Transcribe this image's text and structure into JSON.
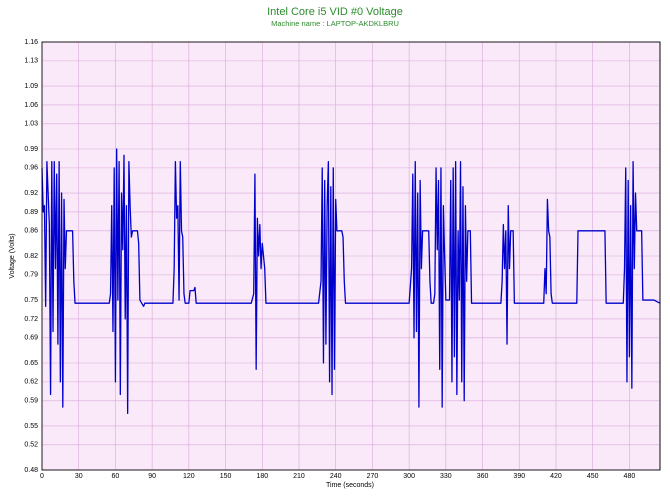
{
  "chart_data": {
    "type": "line",
    "title": "Intel Core i5 VID #0 Voltage",
    "subtitle": "Machine name : LAPTOP-AKDKLBRU",
    "x_label": "Time (seconds)",
    "y_label": "Voltage (Volts)",
    "xlim": [
      0,
      505
    ],
    "ylim": [
      0.48,
      1.16
    ],
    "xticks": [
      0,
      30,
      60,
      90,
      120,
      150,
      180,
      210,
      240,
      270,
      300,
      330,
      360,
      390,
      420,
      450,
      480
    ],
    "yticks": [
      0.48,
      0.52,
      0.55,
      0.59,
      0.62,
      0.65,
      0.69,
      0.72,
      0.75,
      0.79,
      0.82,
      0.86,
      0.89,
      0.92,
      0.96,
      0.99,
      1.03,
      1.06,
      1.09,
      1.13,
      1.16
    ],
    "grid": true,
    "x": [
      0,
      1,
      2,
      3,
      4,
      6,
      7,
      8,
      9,
      10,
      11,
      12,
      13,
      14,
      15,
      16,
      17,
      18,
      19,
      20,
      25,
      26,
      27,
      55,
      56,
      57,
      58,
      59,
      60,
      61,
      62,
      63,
      64,
      65,
      66,
      67,
      68,
      69,
      70,
      71,
      72,
      73,
      74,
      78,
      79,
      80,
      83,
      84,
      107,
      108,
      109,
      110,
      111,
      112,
      113,
      114,
      115,
      116,
      117,
      120,
      121,
      124,
      125,
      126,
      171,
      173,
      174,
      175,
      176,
      177,
      178,
      179,
      180,
      182,
      183,
      226,
      228,
      229,
      230,
      231,
      232,
      233,
      234,
      235,
      236,
      237,
      238,
      239,
      240,
      241,
      245,
      246,
      247,
      248,
      300,
      302,
      303,
      304,
      305,
      306,
      307,
      308,
      309,
      310,
      311,
      316,
      317,
      318,
      320,
      321,
      322,
      323,
      324,
      325,
      326,
      327,
      328,
      329,
      330,
      333,
      334,
      335,
      336,
      337,
      338,
      339,
      340,
      341,
      342,
      343,
      344,
      345,
      346,
      347,
      348,
      350,
      351,
      375,
      376,
      377,
      378,
      379,
      380,
      381,
      382,
      383,
      385,
      386,
      410,
      411,
      412,
      413,
      414,
      415,
      416,
      417,
      437,
      438,
      460,
      461,
      475,
      476,
      477,
      478,
      479,
      480,
      481,
      482,
      483,
      484,
      485,
      486,
      490,
      491,
      500,
      505
    ],
    "series": [
      {
        "color": "#0000cc",
        "values": [
          0.96,
          0.89,
          0.9,
          0.74,
          0.97,
          0.87,
          0.6,
          0.97,
          0.7,
          0.97,
          0.8,
          0.95,
          0.68,
          0.97,
          0.62,
          0.92,
          0.58,
          0.91,
          0.8,
          0.86,
          0.86,
          0.78,
          0.745,
          0.745,
          0.76,
          0.9,
          0.7,
          0.96,
          0.62,
          0.99,
          0.75,
          0.97,
          0.6,
          0.92,
          0.83,
          0.98,
          0.72,
          0.9,
          0.57,
          0.97,
          0.9,
          0.85,
          0.86,
          0.86,
          0.84,
          0.75,
          0.74,
          0.745,
          0.745,
          0.8,
          0.97,
          0.88,
          0.9,
          0.75,
          0.97,
          0.86,
          0.85,
          0.76,
          0.745,
          0.745,
          0.765,
          0.765,
          0.77,
          0.745,
          0.745,
          0.76,
          0.95,
          0.64,
          0.88,
          0.82,
          0.87,
          0.8,
          0.84,
          0.8,
          0.745,
          0.745,
          0.78,
          0.96,
          0.65,
          0.94,
          0.68,
          0.9,
          0.97,
          0.62,
          0.93,
          0.6,
          0.96,
          0.64,
          0.91,
          0.86,
          0.86,
          0.85,
          0.78,
          0.745,
          0.745,
          0.8,
          0.95,
          0.69,
          0.97,
          0.7,
          0.92,
          0.58,
          0.94,
          0.8,
          0.86,
          0.86,
          0.78,
          0.745,
          0.745,
          0.76,
          0.96,
          0.83,
          0.94,
          0.64,
          0.96,
          0.58,
          0.9,
          0.82,
          0.75,
          0.75,
          0.94,
          0.62,
          0.96,
          0.66,
          0.97,
          0.6,
          0.86,
          0.75,
          0.97,
          0.62,
          0.93,
          0.59,
          0.9,
          0.78,
          0.86,
          0.86,
          0.745,
          0.745,
          0.78,
          0.87,
          0.8,
          0.86,
          0.68,
          0.9,
          0.8,
          0.86,
          0.86,
          0.745,
          0.745,
          0.8,
          0.76,
          0.91,
          0.86,
          0.85,
          0.76,
          0.745,
          0.745,
          0.86,
          0.86,
          0.745,
          0.745,
          0.8,
          0.96,
          0.62,
          0.94,
          0.66,
          0.9,
          0.61,
          0.97,
          0.8,
          0.92,
          0.86,
          0.86,
          0.75,
          0.75,
          0.745
        ]
      }
    ]
  }
}
